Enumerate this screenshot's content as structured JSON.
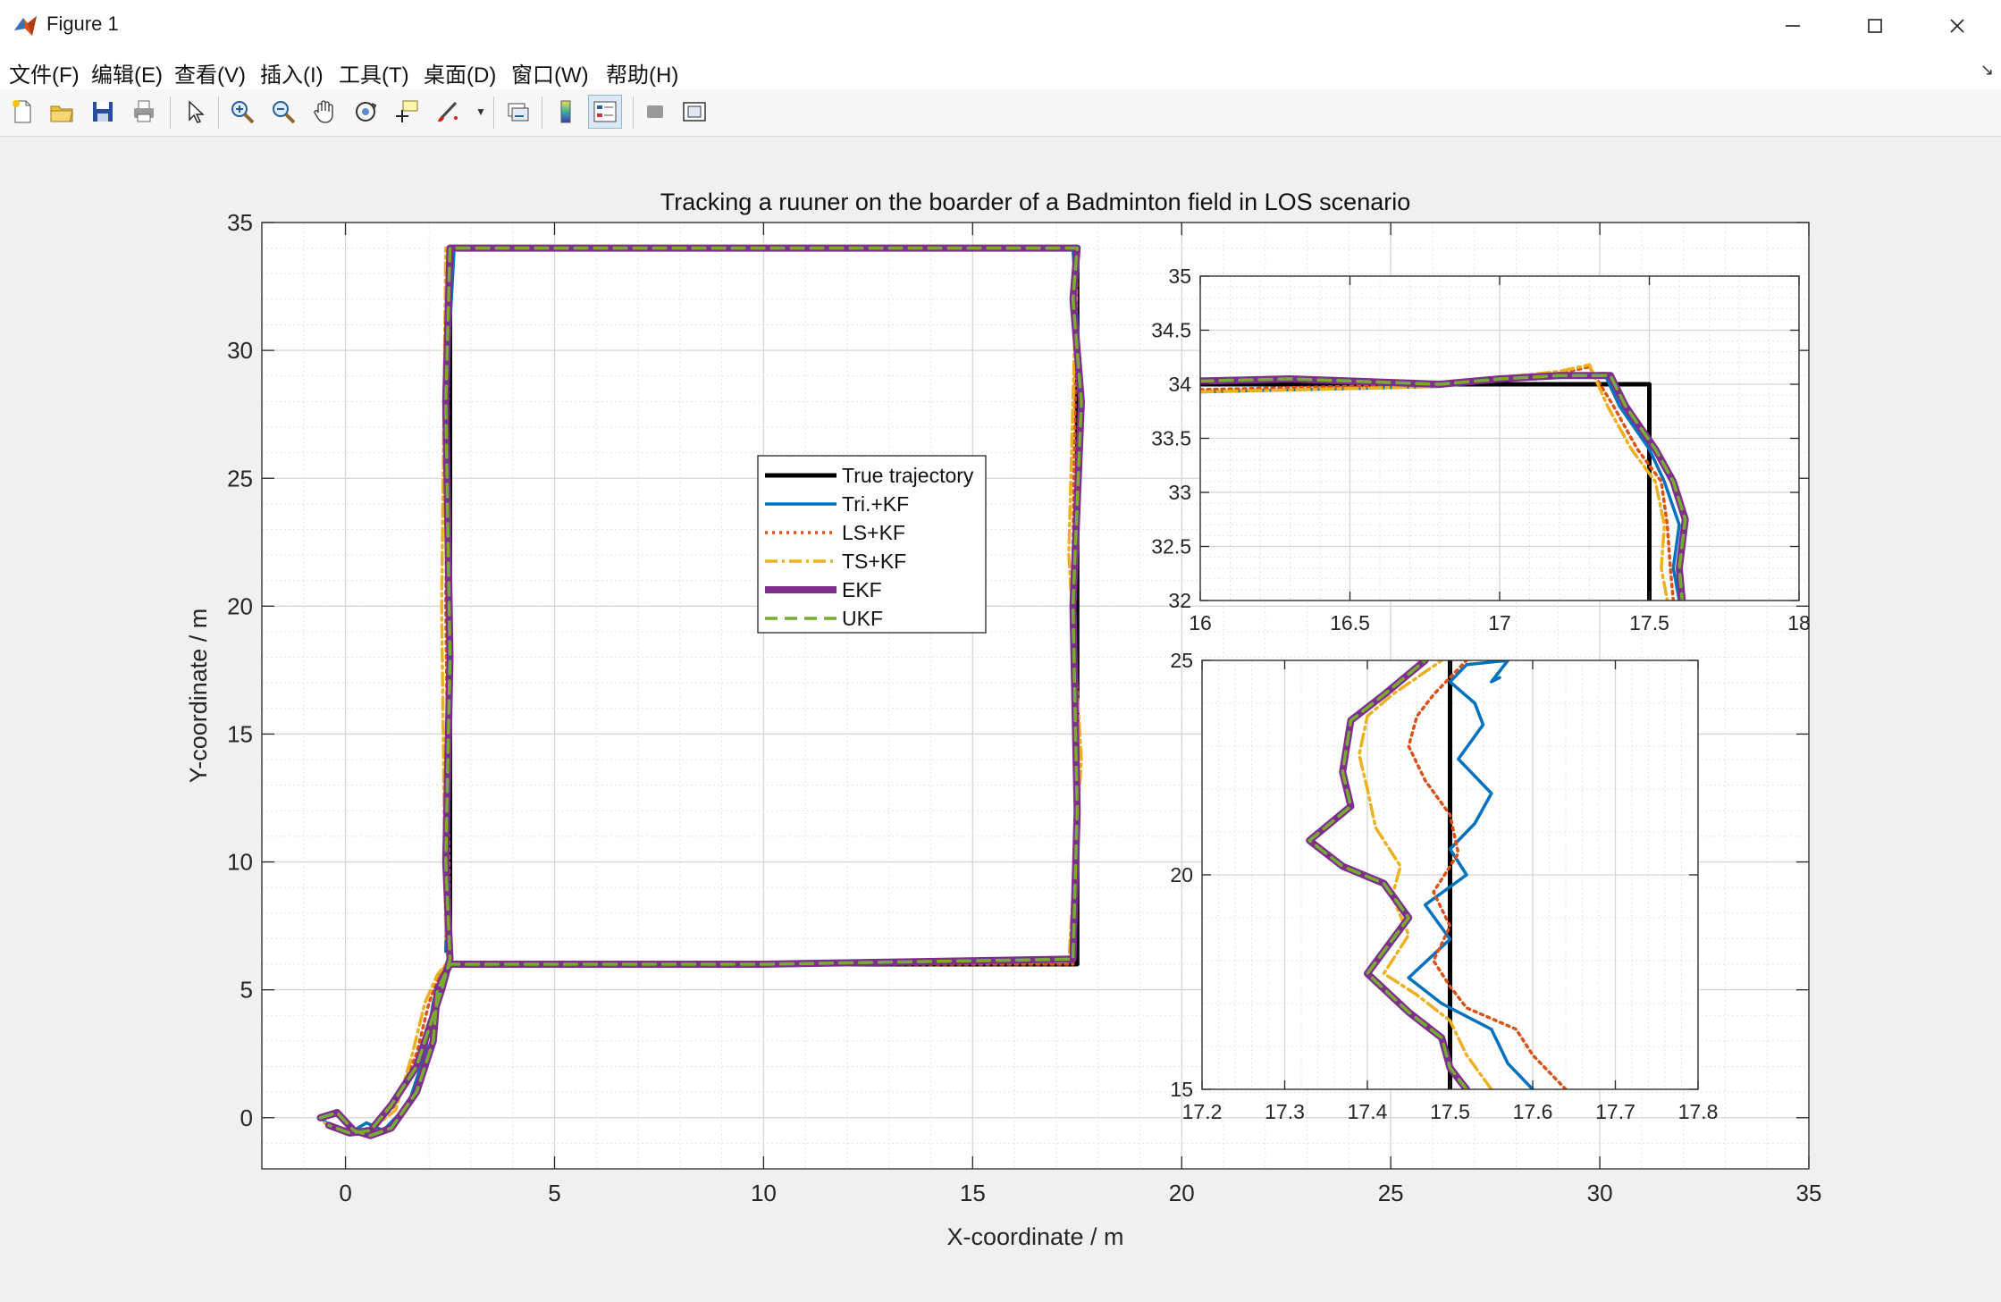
{
  "window": {
    "title": "Figure 1",
    "minimize_icon": "minimize-icon",
    "maximize_icon": "maximize-icon",
    "close_icon": "close-icon"
  },
  "menu": [
    "文件(F)",
    "编辑(E)",
    "查看(V)",
    "插入(I)",
    "工具(T)",
    "桌面(D)",
    "窗口(W)",
    "帮助(H)"
  ],
  "toolbar_icons": [
    "new-figure-icon",
    "open-file-icon",
    "save-icon",
    "print-icon",
    "pointer-icon",
    "zoom-in-icon",
    "zoom-out-icon",
    "pan-icon",
    "rotate-3d-icon",
    "data-cursor-icon",
    "brush-icon",
    "link-plot-icon",
    "colorbar-icon",
    "legend-icon",
    "hide-plot-tools-icon",
    "show-plot-tools-icon"
  ],
  "chart_data": [
    {
      "type": "line",
      "title": "Tracking a ruuner on the boarder of a Badminton field in LOS scenario",
      "xlabel": "X-coordinate / m",
      "ylabel": "Y-coordinate / m",
      "xlim": [
        -2,
        35
      ],
      "ylim": [
        -2,
        35
      ],
      "xticks": [
        "0",
        "5",
        "10",
        "15",
        "20",
        "25",
        "30",
        "35"
      ],
      "yticks": [
        "0",
        "5",
        "10",
        "15",
        "20",
        "25",
        "30",
        "35"
      ],
      "grid": "on, with minor grid",
      "legend_position": "center",
      "legend": [
        "True trajectory",
        "Tri.+KF",
        "LS+KF",
        "TS+KF",
        "EKF",
        "UKF"
      ],
      "colors": {
        "true": "#000000",
        "tri": "#0072BD",
        "ls": "#D95319",
        "ts": "#EDB120",
        "ekf": "#7E2F8E",
        "ukf": "#77AC30"
      },
      "series": [
        {
          "name": "True trajectory",
          "x": [
            2.5,
            17.5,
            17.5,
            2.5,
            2.5
          ],
          "y": [
            6,
            6,
            34,
            34,
            6
          ]
        },
        {
          "name": "Tri.+KF",
          "x": [
            -0.6,
            -0.3,
            0.2,
            0.5,
            0.9,
            1.5,
            1.9,
            2.1,
            2.3,
            2.5,
            10,
            17.4,
            17.5,
            17.4,
            17.6,
            17.4,
            17.5,
            10,
            2.6,
            2.4,
            2.5,
            2.4
          ],
          "y": [
            0,
            -0.4,
            -0.5,
            -0.2,
            -0.5,
            0.5,
            2.5,
            4.5,
            5.7,
            6,
            6,
            6.1,
            12,
            20,
            28,
            34,
            34,
            34,
            34,
            28,
            15,
            6.5
          ]
        },
        {
          "name": "LS+KF",
          "x": [
            -0.5,
            0,
            0.6,
            1.2,
            1.7,
            2.0,
            2.3,
            2.6,
            10,
            17.4,
            17.5,
            17.4,
            17.5,
            10,
            2.5,
            2.4,
            2.5
          ],
          "y": [
            -0.2,
            -0.6,
            -0.4,
            0.5,
            2.5,
            4.5,
            5.8,
            6,
            6,
            6,
            14,
            22,
            34,
            34,
            34,
            20,
            7
          ]
        },
        {
          "name": "TS+KF",
          "x": [
            -0.5,
            0,
            0.6,
            1.2,
            1.6,
            1.9,
            2.2,
            2.4,
            10,
            17.3,
            17.6,
            17.3,
            17.5,
            10,
            2.4,
            2.3,
            2.4
          ],
          "y": [
            -0.2,
            -0.6,
            -0.5,
            0.3,
            2.5,
            4.5,
            5.6,
            6,
            6,
            6.1,
            14,
            22,
            34,
            34,
            34,
            20,
            7
          ]
        },
        {
          "name": "EKF",
          "x": [
            -0.6,
            -0.2,
            0.2,
            0.6,
            1.1,
            1.7,
            2.1,
            2.2,
            2.5,
            10,
            17.4,
            17.5,
            17.4,
            17.6,
            17.4,
            17.5,
            10,
            2.5,
            2.4,
            2.5,
            2.4,
            2.5,
            2.3,
            2.1,
            1.7,
            1.3,
            1.1,
            0.6,
            0.1,
            -0.4
          ],
          "y": [
            0,
            0.2,
            -0.5,
            -0.7,
            -0.4,
            1,
            3,
            5,
            6,
            6,
            6.2,
            12,
            20,
            28,
            32,
            34,
            34,
            34,
            28,
            18,
            10,
            6.2,
            5,
            4,
            2,
            1,
            0.5,
            -0.5,
            -0.6,
            -0.3
          ]
        },
        {
          "name": "UKF",
          "x": [
            -0.6,
            -0.2,
            0.2,
            0.6,
            1.1,
            1.7,
            2.1,
            2.2,
            2.5,
            10,
            17.4,
            17.5,
            17.4,
            17.6,
            17.4,
            17.5,
            10,
            2.5,
            2.4,
            2.5,
            2.4,
            2.5,
            2.3,
            2.1,
            1.7,
            1.3,
            1.1,
            0.6,
            0.1,
            -0.4
          ],
          "y": [
            0,
            0.2,
            -0.5,
            -0.7,
            -0.4,
            1,
            3,
            5,
            6,
            6,
            6.2,
            12,
            20,
            28,
            32,
            34,
            34,
            34,
            28,
            18,
            10,
            6.2,
            5,
            4,
            2,
            1,
            0.5,
            -0.5,
            -0.6,
            -0.3
          ]
        }
      ]
    },
    {
      "type": "line",
      "title": "",
      "xlim": [
        16,
        18
      ],
      "ylim": [
        32,
        35
      ],
      "xticks": [
        "16",
        "16.5",
        "17",
        "17.5",
        "18"
      ],
      "yticks": [
        "32",
        "32.5",
        "33",
        "33.5",
        "34",
        "34.5",
        "35"
      ],
      "grid": "on, with minor grid",
      "series": [
        {
          "name": "True trajectory",
          "x": [
            16,
            17.5,
            17.5
          ],
          "y": [
            34,
            34,
            32
          ]
        },
        {
          "name": "Tri.+KF",
          "x": [
            16,
            16.5,
            16.8,
            17.0,
            17.2,
            17.35,
            17.4,
            17.5,
            17.55,
            17.6,
            17.58,
            17.6
          ],
          "y": [
            33.93,
            33.96,
            33.98,
            34.05,
            34.08,
            34.1,
            33.8,
            33.4,
            33.1,
            32.7,
            32.3,
            32
          ]
        },
        {
          "name": "LS+KF",
          "x": [
            16,
            16.5,
            16.8,
            17.0,
            17.2,
            17.3,
            17.38,
            17.46,
            17.54,
            17.56,
            17.57,
            17.58
          ],
          "y": [
            33.95,
            33.98,
            34.0,
            34.05,
            34.1,
            34.16,
            33.8,
            33.4,
            33.1,
            32.7,
            32.3,
            32
          ]
        },
        {
          "name": "TS+KF",
          "x": [
            16,
            16.5,
            16.8,
            17.0,
            17.2,
            17.3,
            17.36,
            17.44,
            17.52,
            17.55,
            17.54,
            17.56
          ],
          "y": [
            33.93,
            33.96,
            33.98,
            34.06,
            34.12,
            34.18,
            33.8,
            33.4,
            33.1,
            32.7,
            32.3,
            32
          ]
        },
        {
          "name": "EKF",
          "x": [
            16,
            16.3,
            16.6,
            16.8,
            17.0,
            17.2,
            17.37,
            17.42,
            17.52,
            17.58,
            17.62,
            17.6,
            17.61
          ],
          "y": [
            34.03,
            34.05,
            34.02,
            34.0,
            34.05,
            34.08,
            34.08,
            33.8,
            33.4,
            33.1,
            32.75,
            32.3,
            32
          ]
        },
        {
          "name": "UKF",
          "x": [
            16,
            16.3,
            16.6,
            16.8,
            17.0,
            17.2,
            17.37,
            17.42,
            17.52,
            17.58,
            17.62,
            17.6,
            17.61
          ],
          "y": [
            34.03,
            34.05,
            34.02,
            34.0,
            34.05,
            34.08,
            34.08,
            33.8,
            33.4,
            33.1,
            32.75,
            32.3,
            32
          ]
        }
      ]
    },
    {
      "type": "line",
      "title": "",
      "xlim": [
        17.2,
        17.8
      ],
      "ylim": [
        15,
        25
      ],
      "xticks": [
        "17.2",
        "17.3",
        "17.4",
        "17.5",
        "17.6",
        "17.7",
        "17.8"
      ],
      "yticks": [
        "15",
        "20",
        "25"
      ],
      "grid": "on, with minor grid",
      "series": [
        {
          "name": "True trajectory",
          "x": [
            17.5,
            17.5
          ],
          "y": [
            15,
            25
          ]
        },
        {
          "name": "Tri.+KF",
          "x": [
            17.6,
            17.57,
            17.55,
            17.49,
            17.45,
            17.5,
            17.47,
            17.52,
            17.5,
            17.53,
            17.55,
            17.51,
            17.54,
            17.53,
            17.5,
            17.52,
            17.57,
            17.55,
            17.56
          ],
          "y": [
            15,
            15.6,
            16.4,
            17,
            17.6,
            18.5,
            19.3,
            20,
            20.6,
            21.2,
            21.9,
            22.7,
            23.5,
            24,
            24.5,
            24.9,
            25,
            24.5,
            24.6
          ]
        },
        {
          "name": "LS+KF",
          "x": [
            17.64,
            17.6,
            17.58,
            17.52,
            17.5,
            17.48,
            17.5,
            17.48,
            17.51,
            17.5,
            17.47,
            17.45,
            17.46,
            17.48,
            17.5,
            17.52
          ],
          "y": [
            15,
            15.8,
            16.4,
            16.9,
            17.4,
            18,
            18.8,
            19.6,
            20.5,
            21.4,
            22.2,
            23,
            23.7,
            24.2,
            24.6,
            25
          ]
        },
        {
          "name": "TS+KF",
          "x": [
            17.55,
            17.52,
            17.5,
            17.46,
            17.42,
            17.45,
            17.43,
            17.44,
            17.41,
            17.4,
            17.39,
            17.4,
            17.43,
            17.46,
            17.49
          ],
          "y": [
            15,
            15.8,
            16.6,
            17.2,
            17.7,
            18.6,
            19.5,
            20.2,
            21.1,
            22.0,
            22.8,
            23.7,
            24.2,
            24.6,
            25
          ]
        },
        {
          "name": "EKF",
          "x": [
            17.52,
            17.5,
            17.49,
            17.45,
            17.4,
            17.45,
            17.42,
            17.37,
            17.33,
            17.38,
            17.37,
            17.38,
            17.42,
            17.47
          ],
          "y": [
            15,
            15.5,
            16.2,
            16.8,
            17.7,
            19,
            19.8,
            20.2,
            20.8,
            21.6,
            22.4,
            23.6,
            24.2,
            25
          ]
        },
        {
          "name": "UKF",
          "x": [
            17.52,
            17.5,
            17.49,
            17.45,
            17.4,
            17.45,
            17.42,
            17.37,
            17.33,
            17.38,
            17.37,
            17.38,
            17.42,
            17.47
          ],
          "y": [
            15,
            15.5,
            16.2,
            16.8,
            17.7,
            19,
            19.8,
            20.2,
            20.8,
            21.6,
            22.4,
            23.6,
            24.2,
            25
          ]
        }
      ]
    }
  ]
}
